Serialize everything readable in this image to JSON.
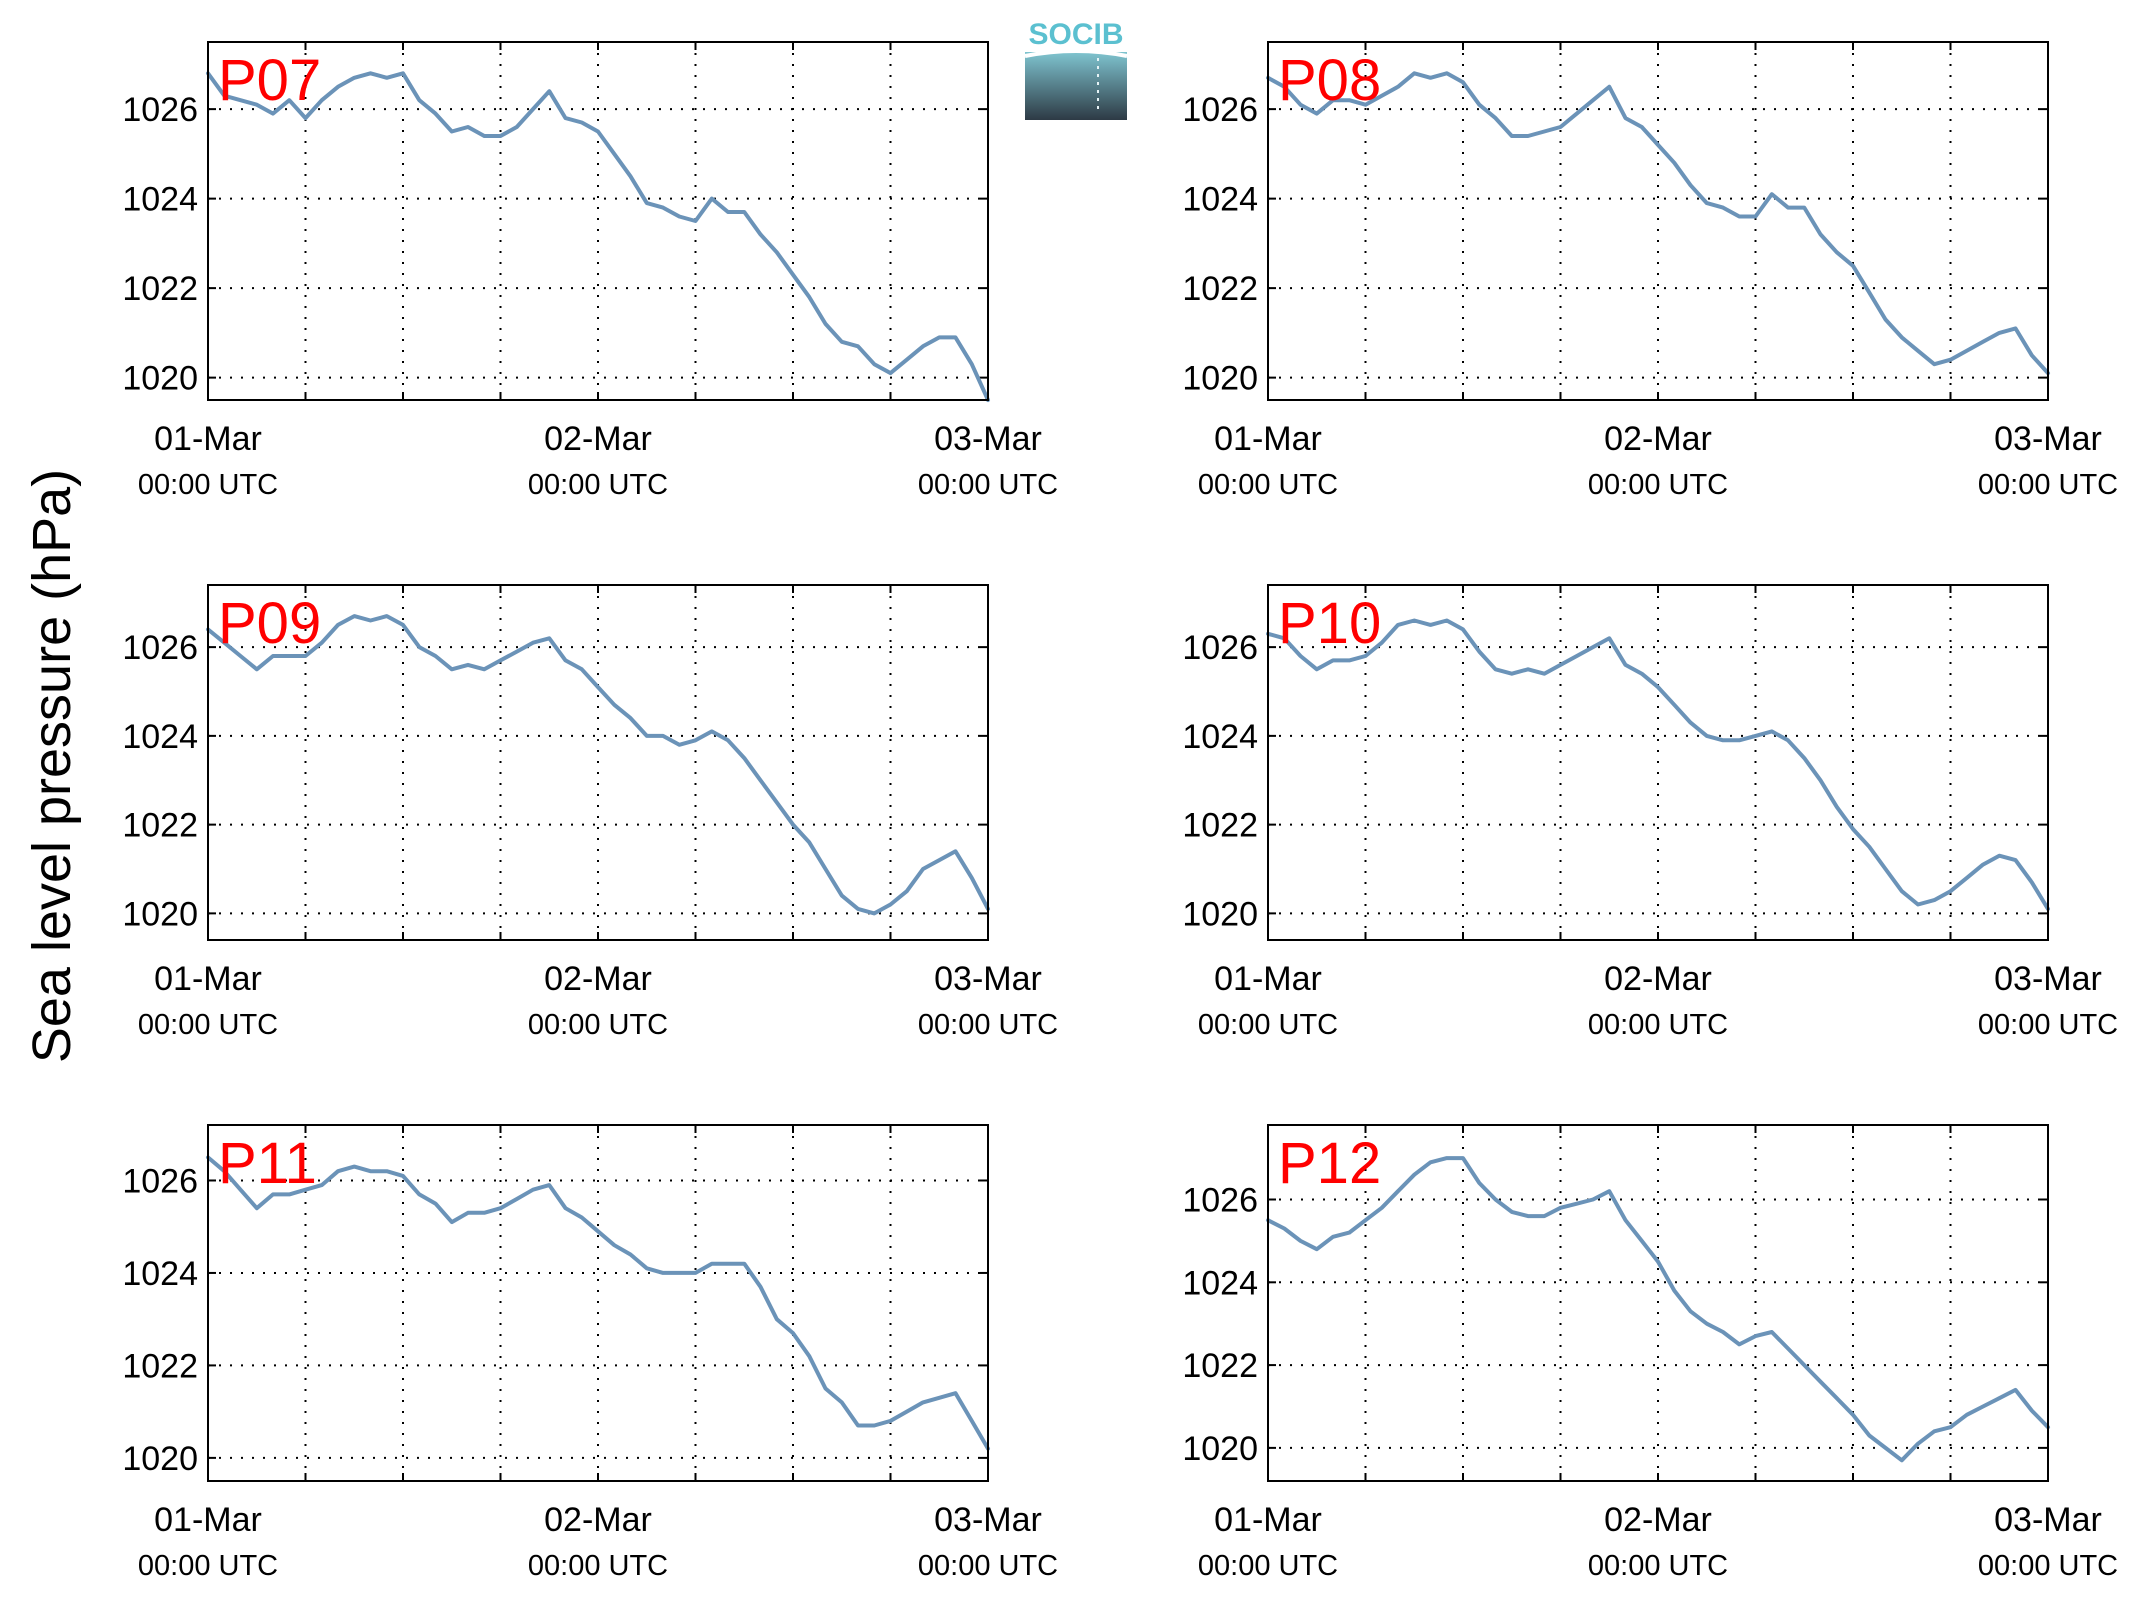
{
  "ylabel": "Sea level pressure (hPa)",
  "logo": {
    "text": "SOCIB",
    "text_color": "#5bc0d0",
    "gradient_top": "#7fc4cf",
    "gradient_bottom": "#2d3a45"
  },
  "colors": {
    "line": "#6b93b8",
    "panel_label": "#ff0000",
    "grid": "#000000"
  },
  "x_ticks": [
    {
      "main": "01-Mar",
      "sub": "00:00 UTC",
      "hour": 0
    },
    {
      "main": "02-Mar",
      "sub": "00:00 UTC",
      "hour": 24
    },
    {
      "main": "03-Mar",
      "sub": "00:00 UTC",
      "hour": 48
    }
  ],
  "chart_data": [
    {
      "type": "line",
      "label": "P07",
      "xlim": [
        0,
        48
      ],
      "ylim": [
        1019.5,
        1027.5
      ],
      "yticks": [
        1020,
        1022,
        1024,
        1026
      ],
      "xgrid_hours": [
        6,
        12,
        18,
        24,
        30,
        36,
        42
      ],
      "grid": true,
      "x": [
        0,
        1,
        2,
        3,
        4,
        5,
        6,
        7,
        8,
        9,
        10,
        11,
        12,
        13,
        14,
        15,
        16,
        17,
        18,
        19,
        20,
        21,
        22,
        23,
        24,
        25,
        26,
        27,
        28,
        29,
        30,
        31,
        32,
        33,
        34,
        35,
        36,
        37,
        38,
        39,
        40,
        41,
        42,
        43,
        44,
        45,
        46,
        47,
        48
      ],
      "y": [
        1026.8,
        1026.3,
        1026.2,
        1026.1,
        1025.9,
        1026.2,
        1025.8,
        1026.2,
        1026.5,
        1026.7,
        1026.8,
        1026.7,
        1026.8,
        1026.2,
        1025.9,
        1025.5,
        1025.6,
        1025.4,
        1025.4,
        1025.6,
        1026.0,
        1026.4,
        1025.8,
        1025.7,
        1025.5,
        1025.0,
        1024.5,
        1023.9,
        1023.8,
        1023.6,
        1023.5,
        1024.0,
        1023.7,
        1023.7,
        1023.2,
        1022.8,
        1022.3,
        1021.8,
        1021.2,
        1020.8,
        1020.7,
        1020.3,
        1020.1,
        1020.4,
        1020.7,
        1020.9,
        1020.9,
        1020.3,
        1019.5
      ]
    },
    {
      "type": "line",
      "label": "P08",
      "xlim": [
        0,
        48
      ],
      "ylim": [
        1019.5,
        1027.5
      ],
      "yticks": [
        1020,
        1022,
        1024,
        1026
      ],
      "xgrid_hours": [
        6,
        12,
        18,
        24,
        30,
        36,
        42
      ],
      "grid": true,
      "x": [
        0,
        1,
        2,
        3,
        4,
        5,
        6,
        7,
        8,
        9,
        10,
        11,
        12,
        13,
        14,
        15,
        16,
        17,
        18,
        19,
        20,
        21,
        22,
        23,
        24,
        25,
        26,
        27,
        28,
        29,
        30,
        31,
        32,
        33,
        34,
        35,
        36,
        37,
        38,
        39,
        40,
        41,
        42,
        43,
        44,
        45,
        46,
        47,
        48
      ],
      "y": [
        1026.7,
        1026.5,
        1026.1,
        1025.9,
        1026.2,
        1026.2,
        1026.1,
        1026.3,
        1026.5,
        1026.8,
        1026.7,
        1026.8,
        1026.6,
        1026.1,
        1025.8,
        1025.4,
        1025.4,
        1025.5,
        1025.6,
        1025.9,
        1026.2,
        1026.5,
        1025.8,
        1025.6,
        1025.2,
        1024.8,
        1024.3,
        1023.9,
        1023.8,
        1023.6,
        1023.6,
        1024.1,
        1023.8,
        1023.8,
        1023.2,
        1022.8,
        1022.5,
        1021.9,
        1021.3,
        1020.9,
        1020.6,
        1020.3,
        1020.4,
        1020.6,
        1020.8,
        1021.0,
        1021.1,
        1020.5,
        1020.1
      ]
    },
    {
      "type": "line",
      "label": "P09",
      "xlim": [
        0,
        48
      ],
      "ylim": [
        1019.4,
        1027.4
      ],
      "yticks": [
        1020,
        1022,
        1024,
        1026
      ],
      "xgrid_hours": [
        6,
        12,
        18,
        24,
        30,
        36,
        42
      ],
      "grid": true,
      "x": [
        0,
        1,
        2,
        3,
        4,
        5,
        6,
        7,
        8,
        9,
        10,
        11,
        12,
        13,
        14,
        15,
        16,
        17,
        18,
        19,
        20,
        21,
        22,
        23,
        24,
        25,
        26,
        27,
        28,
        29,
        30,
        31,
        32,
        33,
        34,
        35,
        36,
        37,
        38,
        39,
        40,
        41,
        42,
        43,
        44,
        45,
        46,
        47,
        48
      ],
      "y": [
        1026.4,
        1026.1,
        1025.8,
        1025.5,
        1025.8,
        1025.8,
        1025.8,
        1026.1,
        1026.5,
        1026.7,
        1026.6,
        1026.7,
        1026.5,
        1026.0,
        1025.8,
        1025.5,
        1025.6,
        1025.5,
        1025.7,
        1025.9,
        1026.1,
        1026.2,
        1025.7,
        1025.5,
        1025.1,
        1024.7,
        1024.4,
        1024.0,
        1024.0,
        1023.8,
        1023.9,
        1024.1,
        1023.9,
        1023.5,
        1023.0,
        1022.5,
        1022.0,
        1021.6,
        1021.0,
        1020.4,
        1020.1,
        1020.0,
        1020.2,
        1020.5,
        1021.0,
        1021.2,
        1021.4,
        1020.8,
        1020.1
      ]
    },
    {
      "type": "line",
      "label": "P10",
      "xlim": [
        0,
        48
      ],
      "ylim": [
        1019.4,
        1027.4
      ],
      "yticks": [
        1020,
        1022,
        1024,
        1026
      ],
      "xgrid_hours": [
        6,
        12,
        18,
        24,
        30,
        36,
        42
      ],
      "grid": true,
      "x": [
        0,
        1,
        2,
        3,
        4,
        5,
        6,
        7,
        8,
        9,
        10,
        11,
        12,
        13,
        14,
        15,
        16,
        17,
        18,
        19,
        20,
        21,
        22,
        23,
        24,
        25,
        26,
        27,
        28,
        29,
        30,
        31,
        32,
        33,
        34,
        35,
        36,
        37,
        38,
        39,
        40,
        41,
        42,
        43,
        44,
        45,
        46,
        47,
        48
      ],
      "y": [
        1026.3,
        1026.2,
        1025.8,
        1025.5,
        1025.7,
        1025.7,
        1025.8,
        1026.1,
        1026.5,
        1026.6,
        1026.5,
        1026.6,
        1026.4,
        1025.9,
        1025.5,
        1025.4,
        1025.5,
        1025.4,
        1025.6,
        1025.8,
        1026.0,
        1026.2,
        1025.6,
        1025.4,
        1025.1,
        1024.7,
        1024.3,
        1024.0,
        1023.9,
        1023.9,
        1024.0,
        1024.1,
        1023.9,
        1023.5,
        1023.0,
        1022.4,
        1021.9,
        1021.5,
        1021.0,
        1020.5,
        1020.2,
        1020.3,
        1020.5,
        1020.8,
        1021.1,
        1021.3,
        1021.2,
        1020.7,
        1020.1
      ]
    },
    {
      "type": "line",
      "label": "P11",
      "xlim": [
        0,
        48
      ],
      "ylim": [
        1019.5,
        1027.2
      ],
      "yticks": [
        1020,
        1022,
        1024,
        1026
      ],
      "xgrid_hours": [
        6,
        12,
        18,
        24,
        30,
        36,
        42
      ],
      "grid": true,
      "x": [
        0,
        1,
        2,
        3,
        4,
        5,
        6,
        7,
        8,
        9,
        10,
        11,
        12,
        13,
        14,
        15,
        16,
        17,
        18,
        19,
        20,
        21,
        22,
        23,
        24,
        25,
        26,
        27,
        28,
        29,
        30,
        31,
        32,
        33,
        34,
        35,
        36,
        37,
        38,
        39,
        40,
        41,
        42,
        43,
        44,
        45,
        46,
        47,
        48
      ],
      "y": [
        1026.5,
        1026.2,
        1025.8,
        1025.4,
        1025.7,
        1025.7,
        1025.8,
        1025.9,
        1026.2,
        1026.3,
        1026.2,
        1026.2,
        1026.1,
        1025.7,
        1025.5,
        1025.1,
        1025.3,
        1025.3,
        1025.4,
        1025.6,
        1025.8,
        1025.9,
        1025.4,
        1025.2,
        1024.9,
        1024.6,
        1024.4,
        1024.1,
        1024.0,
        1024.0,
        1024.0,
        1024.2,
        1024.2,
        1024.2,
        1023.7,
        1023.0,
        1022.7,
        1022.2,
        1021.5,
        1021.2,
        1020.7,
        1020.7,
        1020.8,
        1021.0,
        1021.2,
        1021.3,
        1021.4,
        1020.8,
        1020.2
      ]
    },
    {
      "type": "line",
      "label": "P12",
      "xlim": [
        0,
        48
      ],
      "ylim": [
        1019.2,
        1027.8
      ],
      "yticks": [
        1020,
        1022,
        1024,
        1026
      ],
      "xgrid_hours": [
        6,
        12,
        18,
        24,
        30,
        36,
        42
      ],
      "grid": true,
      "x": [
        0,
        1,
        2,
        3,
        4,
        5,
        6,
        7,
        8,
        9,
        10,
        11,
        12,
        13,
        14,
        15,
        16,
        17,
        18,
        19,
        20,
        21,
        22,
        23,
        24,
        25,
        26,
        27,
        28,
        29,
        30,
        31,
        32,
        33,
        34,
        35,
        36,
        37,
        38,
        39,
        40,
        41,
        42,
        43,
        44,
        45,
        46,
        47,
        48
      ],
      "y": [
        1025.5,
        1025.3,
        1025.0,
        1024.8,
        1025.1,
        1025.2,
        1025.5,
        1025.8,
        1026.2,
        1026.6,
        1026.9,
        1027.0,
        1027.0,
        1026.4,
        1026.0,
        1025.7,
        1025.6,
        1025.6,
        1025.8,
        1025.9,
        1026.0,
        1026.2,
        1025.5,
        1025.0,
        1024.5,
        1023.8,
        1023.3,
        1023.0,
        1022.8,
        1022.5,
        1022.7,
        1022.8,
        1022.4,
        1022.0,
        1021.6,
        1021.2,
        1020.8,
        1020.3,
        1020.0,
        1019.7,
        1020.1,
        1020.4,
        1020.5,
        1020.8,
        1021.0,
        1021.2,
        1021.4,
        1020.9,
        1020.5
      ]
    }
  ]
}
